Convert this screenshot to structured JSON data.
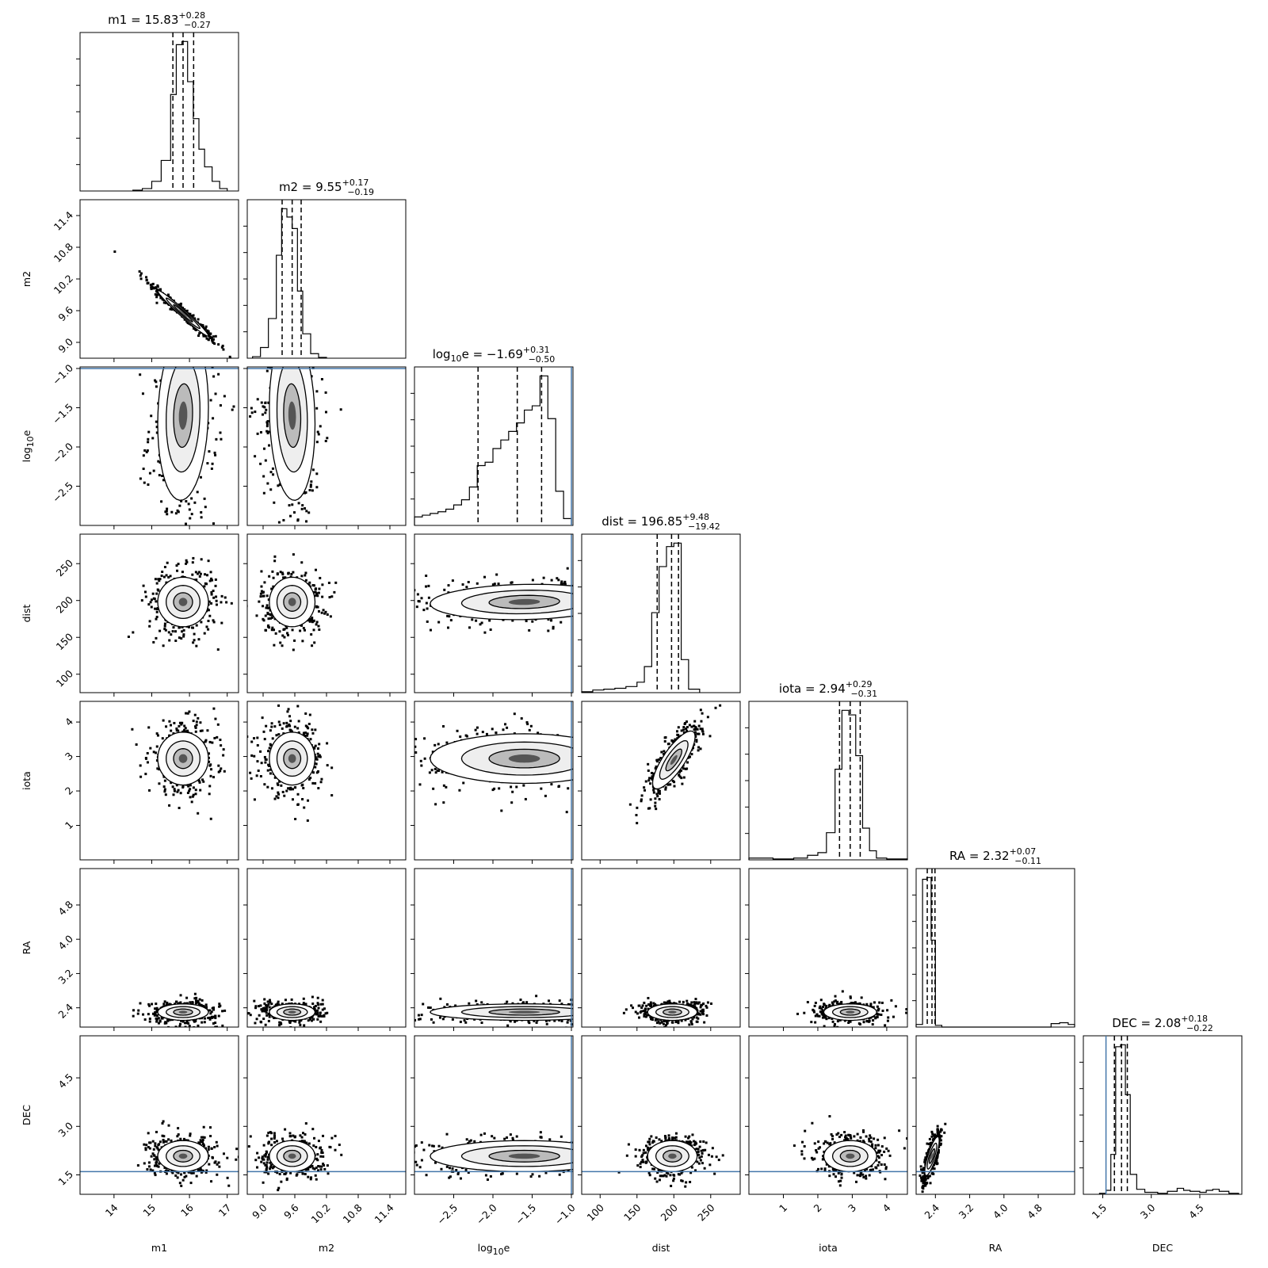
{
  "chart_data": {
    "type": "corner",
    "parameters": [
      {
        "name": "m1",
        "label": "m1",
        "label_sub": "",
        "label_rest": "",
        "median": "15.83",
        "plus": "+0.28",
        "minus": "−0.27",
        "range": [
          13.1,
          17.3
        ],
        "ticks": [
          14,
          15,
          16,
          17
        ],
        "tick_labels": [
          "14",
          "15",
          "16",
          "17"
        ],
        "truth": null,
        "quantiles": [
          15.56,
          15.83,
          16.11
        ],
        "hist_edges": [
          14.5,
          14.75,
          15.0,
          15.25,
          15.5,
          15.65,
          15.8,
          15.95,
          16.1,
          16.25,
          16.4,
          16.6,
          16.8,
          17.0
        ],
        "hist_counts": [
          1,
          3,
          12,
          38,
          120,
          182,
          186,
          136,
          90,
          52,
          30,
          12,
          3
        ]
      },
      {
        "name": "m2",
        "label": "m2",
        "label_sub": "",
        "label_rest": "",
        "median": "9.55",
        "plus": "+0.17",
        "minus": "−0.19",
        "range": [
          8.7,
          11.7
        ],
        "ticks": [
          9.0,
          9.6,
          10.2,
          10.8,
          11.4
        ],
        "tick_labels": [
          "9.0",
          "9.6",
          "10.2",
          "10.8",
          "11.4"
        ],
        "truth": null,
        "quantiles": [
          9.36,
          9.55,
          9.72
        ],
        "hist_edges": [
          8.8,
          8.95,
          9.1,
          9.25,
          9.35,
          9.45,
          9.55,
          9.65,
          9.75,
          9.9,
          10.05,
          10.2
        ],
        "hist_counts": [
          2,
          14,
          52,
          135,
          196,
          185,
          170,
          88,
          32,
          6,
          1
        ]
      },
      {
        "name": "log10e",
        "label": "log",
        "label_sub": "10",
        "label_rest": "e",
        "median": "−1.69",
        "plus": "+0.31",
        "minus": "−0.50",
        "range": [
          -3.0,
          -0.98
        ],
        "ticks": [
          -2.5,
          -2.0,
          -1.5,
          -1.0
        ],
        "tick_labels": [
          "−2.5",
          "−2.0",
          "−1.5",
          "−1.0"
        ],
        "truth": -1.0,
        "quantiles": [
          -2.19,
          -1.69,
          -1.38
        ],
        "hist_edges": [
          -3.0,
          -2.9,
          -2.8,
          -2.7,
          -2.6,
          -2.5,
          -2.4,
          -2.3,
          -2.2,
          -2.1,
          -2.0,
          -1.9,
          -1.8,
          -1.7,
          -1.6,
          -1.5,
          -1.4,
          -1.3,
          -1.2,
          -1.1,
          -1.0
        ],
        "hist_counts": [
          10,
          12,
          14,
          16,
          19,
          24,
          30,
          45,
          70,
          74,
          90,
          100,
          110,
          120,
          135,
          140,
          175,
          125,
          40,
          8
        ]
      },
      {
        "name": "dist",
        "label": "dist",
        "label_sub": "",
        "label_rest": "",
        "median": "196.85",
        "plus": "+9.48",
        "minus": "−19.42",
        "range": [
          75,
          290
        ],
        "ticks": [
          100,
          150,
          200,
          250
        ],
        "tick_labels": [
          "100",
          "150",
          "200",
          "250"
        ],
        "truth": null,
        "quantiles": [
          177.4,
          196.9,
          206.3
        ],
        "hist_edges": [
          75,
          90,
          105,
          120,
          135,
          150,
          160,
          170,
          180,
          190,
          200,
          210,
          220,
          235
        ],
        "hist_counts": [
          1,
          3,
          4,
          5,
          7,
          12,
          30,
          92,
          145,
          168,
          172,
          38,
          4
        ]
      },
      {
        "name": "iota",
        "label": "iota",
        "label_sub": "",
        "label_rest": "",
        "median": "2.94",
        "plus": "+0.29",
        "minus": "−0.31",
        "range": [
          0.0,
          4.6
        ],
        "ticks": [
          1,
          2,
          3,
          4
        ],
        "tick_labels": [
          "1",
          "2",
          "3",
          "4"
        ],
        "truth": null,
        "quantiles": [
          2.63,
          2.94,
          3.23
        ],
        "hist_edges": [
          0.0,
          0.7,
          1.3,
          1.7,
          2.0,
          2.25,
          2.5,
          2.7,
          2.9,
          3.1,
          3.3,
          3.5,
          3.7,
          4.0,
          4.6
        ],
        "hist_counts": [
          2,
          1,
          2,
          5,
          8,
          30,
          100,
          165,
          160,
          115,
          35,
          10,
          2,
          1
        ]
      },
      {
        "name": "RA",
        "label": "RA",
        "label_sub": "",
        "label_rest": "",
        "median": "2.32",
        "plus": "+0.07",
        "minus": "−0.11",
        "range": [
          1.95,
          5.65
        ],
        "ticks": [
          2.4,
          3.2,
          4.0,
          4.8
        ],
        "tick_labels": [
          "2.4",
          "3.2",
          "4.0",
          "4.8"
        ],
        "truth": null,
        "quantiles": [
          2.21,
          2.32,
          2.39
        ],
        "hist_edges": [
          1.95,
          2.1,
          2.2,
          2.3,
          2.4,
          2.55,
          2.8,
          5.1,
          5.3,
          5.5,
          5.65
        ],
        "hist_counts": [
          3,
          170,
          172,
          100,
          2,
          0,
          0,
          4,
          5,
          3
        ]
      },
      {
        "name": "DEC",
        "label": "DEC",
        "label_sub": "",
        "label_rest": "",
        "median": "2.08",
        "plus": "+0.18",
        "minus": "−0.22",
        "range": [
          0.9,
          5.8
        ],
        "ticks": [
          1.5,
          3.0,
          4.5
        ],
        "tick_labels": [
          "1.5",
          "3.0",
          "4.5"
        ],
        "truth": 1.6,
        "quantiles": [
          1.86,
          2.08,
          2.26
        ],
        "hist_edges": [
          1.4,
          1.6,
          1.75,
          1.9,
          2.05,
          2.2,
          2.35,
          2.55,
          2.8,
          3.2,
          3.5,
          3.8,
          4.0,
          4.2,
          4.5,
          4.7,
          4.9,
          5.1,
          5.4,
          5.7
        ],
        "hist_counts": [
          1,
          4,
          40,
          148,
          150,
          100,
          20,
          5,
          2,
          1,
          3,
          6,
          4,
          3,
          2,
          4,
          5,
          3,
          1
        ]
      }
    ],
    "joint_blobs": [
      {
        "i": 1,
        "j": 0,
        "mx": 15.83,
        "my": 9.55,
        "sx": 0.28,
        "sy": 0.18,
        "rho": -0.98
      },
      {
        "i": 2,
        "j": 0,
        "mx": 15.83,
        "my": -1.6,
        "sx": 0.28,
        "sy": 0.45,
        "rho": 0.1
      },
      {
        "i": 2,
        "j": 1,
        "mx": 9.55,
        "my": -1.6,
        "sx": 0.18,
        "sy": 0.45,
        "rho": -0.1
      },
      {
        "i": 3,
        "j": 0,
        "mx": 15.83,
        "my": 198,
        "sx": 0.28,
        "sy": 14,
        "rho": 0.0
      },
      {
        "i": 3,
        "j": 1,
        "mx": 9.55,
        "my": 198,
        "sx": 0.18,
        "sy": 14,
        "rho": 0.0
      },
      {
        "i": 3,
        "j": 2,
        "mx": -1.6,
        "my": 198,
        "sx": 0.5,
        "sy": 10,
        "rho": 0.1
      },
      {
        "i": 4,
        "j": 0,
        "mx": 15.83,
        "my": 2.94,
        "sx": 0.28,
        "sy": 0.32,
        "rho": 0.0
      },
      {
        "i": 4,
        "j": 1,
        "mx": 9.55,
        "my": 2.94,
        "sx": 0.18,
        "sy": 0.32,
        "rho": 0.0
      },
      {
        "i": 4,
        "j": 2,
        "mx": -1.6,
        "my": 2.94,
        "sx": 0.5,
        "sy": 0.3,
        "rho": 0.0
      },
      {
        "i": 4,
        "j": 3,
        "mx": 200,
        "my": 2.9,
        "sx": 12,
        "sy": 0.35,
        "rho": 0.8
      },
      {
        "i": 5,
        "j": 0,
        "mx": 15.83,
        "my": 2.3,
        "sx": 0.28,
        "sy": 0.08,
        "rho": 0.0
      },
      {
        "i": 5,
        "j": 1,
        "mx": 9.55,
        "my": 2.3,
        "sx": 0.18,
        "sy": 0.08,
        "rho": 0.0
      },
      {
        "i": 5,
        "j": 2,
        "mx": -1.6,
        "my": 2.3,
        "sx": 0.5,
        "sy": 0.08,
        "rho": 0.0
      },
      {
        "i": 5,
        "j": 3,
        "mx": 198,
        "my": 2.3,
        "sx": 14,
        "sy": 0.08,
        "rho": 0.0
      },
      {
        "i": 5,
        "j": 4,
        "mx": 2.94,
        "my": 2.3,
        "sx": 0.32,
        "sy": 0.08,
        "rho": 0.0
      },
      {
        "i": 6,
        "j": 0,
        "mx": 15.83,
        "my": 2.08,
        "sx": 0.28,
        "sy": 0.2,
        "rho": 0.0
      },
      {
        "i": 6,
        "j": 1,
        "mx": 9.55,
        "my": 2.08,
        "sx": 0.18,
        "sy": 0.2,
        "rho": 0.0
      },
      {
        "i": 6,
        "j": 2,
        "mx": -1.6,
        "my": 2.08,
        "sx": 0.5,
        "sy": 0.2,
        "rho": 0.0
      },
      {
        "i": 6,
        "j": 3,
        "mx": 198,
        "my": 2.08,
        "sx": 14,
        "sy": 0.2,
        "rho": 0.0
      },
      {
        "i": 6,
        "j": 4,
        "mx": 2.94,
        "my": 2.08,
        "sx": 0.32,
        "sy": 0.2,
        "rho": 0.0
      },
      {
        "i": 6,
        "j": 5,
        "mx": 2.32,
        "my": 2.08,
        "sx": 0.07,
        "sy": 0.25,
        "rho": 0.8
      }
    ],
    "colors": {
      "hist": "#000000",
      "truth": "#4477aa",
      "contour": "#000000",
      "points": "#000000"
    }
  }
}
